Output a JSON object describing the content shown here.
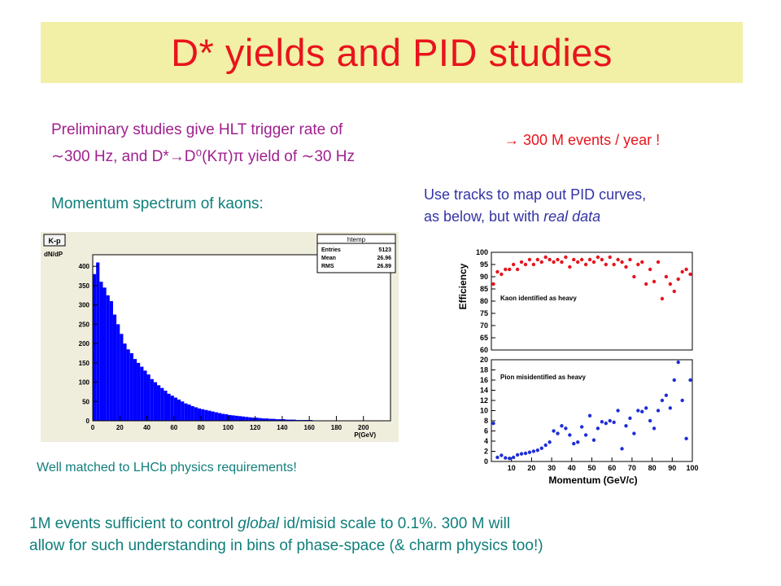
{
  "slide": {
    "title": "D* yields and PID studies",
    "intro_line1": "Preliminary studies give HLT trigger rate of",
    "intro_line2": "∼300 Hz, and D*→D⁰(Kπ)π yield of ∼30 Hz",
    "arrow_note": "→ 300 M events / year !",
    "momentum_caption": "Momentum spectrum of kaons:",
    "tracks_line1": "Use tracks to map out PID curves,",
    "tracks_line2_pre": "as below, but with ",
    "tracks_line2_em": "real data",
    "well_matched": "Well matched to LHCb physics requirements!",
    "bottom_line1_a": "1M events sufficient to control ",
    "bottom_line1_em": "global",
    "bottom_line1_b": " id/misid scale to 0.1%.  300 M will",
    "bottom_line2": "allow for such understanding in bins of phase-space (& charm physics too!)"
  },
  "colors": {
    "title": "#e8141c",
    "title_bg": "#f2f0a6",
    "purple": "#a0208e",
    "blue": "#3333a6",
    "teal": "#0f7f7b",
    "hist_fill": "#0000ff",
    "kaon": "#e8141c",
    "pion": "#1f2ed6"
  },
  "chart_data": [
    {
      "type": "bar",
      "tag": "K-p",
      "ylabel": "dN/dP",
      "xlabel": "P(GeV)",
      "stats_title": "htemp",
      "stats": [
        {
          "label": "Entries",
          "value": "5123"
        },
        {
          "label": "Mean",
          "value": "26.96"
        },
        {
          "label": "RMS",
          "value": "26.89"
        }
      ],
      "xlim": [
        0,
        220
      ],
      "ylim": [
        0,
        430
      ],
      "xticks": [
        0,
        20,
        40,
        60,
        80,
        100,
        120,
        140,
        160,
        180,
        200
      ],
      "yticks": [
        0,
        50,
        100,
        150,
        200,
        250,
        300,
        350,
        400
      ],
      "bin_width": 2.5,
      "values": [
        380,
        410,
        360,
        345,
        325,
        310,
        275,
        250,
        225,
        200,
        185,
        175,
        160,
        150,
        140,
        130,
        120,
        108,
        100,
        92,
        85,
        78,
        70,
        65,
        60,
        55,
        50,
        45,
        42,
        38,
        35,
        32,
        30,
        28,
        26,
        24,
        22,
        20,
        18,
        17,
        15,
        14,
        13,
        12,
        11,
        10,
        9,
        8,
        8,
        7,
        6,
        6,
        5,
        5,
        4,
        4,
        4,
        3,
        3,
        3,
        2,
        2,
        2,
        2,
        2,
        1,
        1,
        1,
        1,
        1,
        1,
        1,
        1,
        0,
        1,
        0,
        1,
        0,
        0,
        1,
        0,
        0,
        0,
        0
      ]
    },
    {
      "type": "scatter",
      "ylabel": "Efficiency",
      "annotation": "Kaon identified as heavy",
      "xlim": [
        0,
        100
      ],
      "ylim": [
        60,
        100
      ],
      "yticks": [
        60,
        65,
        70,
        75,
        80,
        85,
        90,
        95,
        100
      ],
      "points": [
        [
          1,
          87
        ],
        [
          3,
          92
        ],
        [
          5,
          91
        ],
        [
          7,
          93
        ],
        [
          9,
          93
        ],
        [
          11,
          95
        ],
        [
          13,
          93
        ],
        [
          15,
          96
        ],
        [
          17,
          95
        ],
        [
          19,
          97
        ],
        [
          21,
          95
        ],
        [
          23,
          97
        ],
        [
          25,
          96
        ],
        [
          27,
          98
        ],
        [
          29,
          97
        ],
        [
          31,
          96
        ],
        [
          33,
          97
        ],
        [
          35,
          96
        ],
        [
          37,
          98
        ],
        [
          39,
          94
        ],
        [
          41,
          97
        ],
        [
          43,
          96
        ],
        [
          45,
          97
        ],
        [
          47,
          95
        ],
        [
          49,
          97
        ],
        [
          51,
          96
        ],
        [
          53,
          98
        ],
        [
          55,
          97
        ],
        [
          57,
          95
        ],
        [
          59,
          98
        ],
        [
          61,
          95
        ],
        [
          63,
          97
        ],
        [
          65,
          96
        ],
        [
          67,
          94
        ],
        [
          69,
          97
        ],
        [
          71,
          90
        ],
        [
          73,
          95
        ],
        [
          75,
          96
        ],
        [
          77,
          87
        ],
        [
          79,
          93
        ],
        [
          81,
          88
        ],
        [
          83,
          96
        ],
        [
          85,
          81
        ],
        [
          87,
          90
        ],
        [
          89,
          87
        ],
        [
          91,
          84
        ],
        [
          93,
          89
        ],
        [
          95,
          92
        ],
        [
          97,
          93
        ],
        [
          99,
          91
        ]
      ]
    },
    {
      "type": "scatter",
      "annotation": "Pion misidentified as heavy",
      "xlabel": "Momentum (GeV/c)",
      "xlim": [
        0,
        100
      ],
      "ylim": [
        0,
        20
      ],
      "xticks": [
        10,
        20,
        30,
        40,
        50,
        60,
        70,
        80,
        90,
        100
      ],
      "yticks": [
        0,
        2,
        4,
        6,
        8,
        10,
        12,
        14,
        16,
        18,
        20
      ],
      "points": [
        [
          1,
          7.5
        ],
        [
          3,
          0.8
        ],
        [
          5,
          1.2
        ],
        [
          7,
          0.7
        ],
        [
          9,
          0.6
        ],
        [
          11,
          0.8
        ],
        [
          13,
          1.3
        ],
        [
          15,
          1.5
        ],
        [
          17,
          1.6
        ],
        [
          19,
          1.8
        ],
        [
          21,
          2.0
        ],
        [
          23,
          2.2
        ],
        [
          25,
          2.6
        ],
        [
          27,
          3.2
        ],
        [
          29,
          3.8
        ],
        [
          31,
          6.0
        ],
        [
          33,
          5.5
        ],
        [
          35,
          7.0
        ],
        [
          37,
          6.5
        ],
        [
          39,
          5.2
        ],
        [
          41,
          3.5
        ],
        [
          43,
          3.8
        ],
        [
          45,
          6.8
        ],
        [
          47,
          5.2
        ],
        [
          49,
          9.0
        ],
        [
          51,
          4.2
        ],
        [
          53,
          6.5
        ],
        [
          55,
          7.8
        ],
        [
          57,
          7.5
        ],
        [
          59,
          8.0
        ],
        [
          61,
          7.7
        ],
        [
          63,
          10.0
        ],
        [
          65,
          2.5
        ],
        [
          67,
          7.0
        ],
        [
          69,
          8.5
        ],
        [
          71,
          5.5
        ],
        [
          73,
          10.0
        ],
        [
          75,
          9.8
        ],
        [
          77,
          10.5
        ],
        [
          79,
          8.0
        ],
        [
          81,
          6.5
        ],
        [
          83,
          10.0
        ],
        [
          85,
          12.0
        ],
        [
          87,
          13.0
        ],
        [
          89,
          10.5
        ],
        [
          91,
          16.0
        ],
        [
          93,
          19.5
        ],
        [
          95,
          12.0
        ],
        [
          97,
          4.5
        ],
        [
          99,
          16.0
        ]
      ]
    }
  ]
}
